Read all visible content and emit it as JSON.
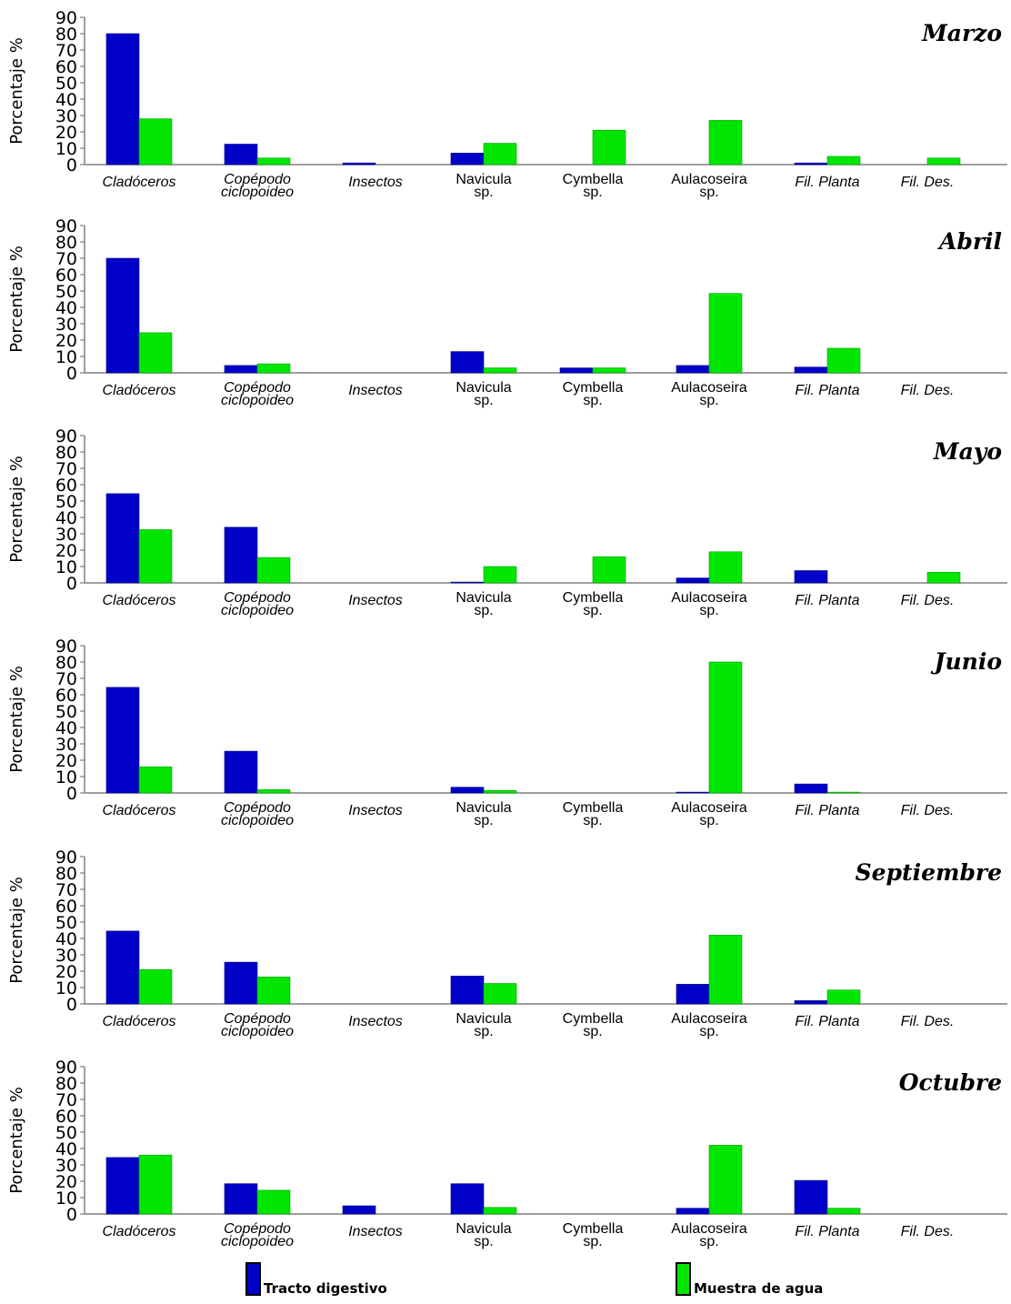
{
  "chart_data": [
    {
      "type": "bar",
      "title": "Marzo",
      "ylabel": "Porcentaje %",
      "ylim": [
        0,
        90
      ],
      "yticks": [
        "0",
        "10",
        "20",
        "30",
        "40",
        "50",
        "60",
        "70",
        "80",
        "90"
      ],
      "categories": [
        [
          "Cladóceros"
        ],
        [
          "Copépodo",
          "ciclopoideo"
        ],
        [
          "Insectos"
        ],
        [
          "Navicula",
          "sp."
        ],
        [
          "Cymbella",
          "sp."
        ],
        [
          "Aulacoseira",
          "sp."
        ],
        [
          "Fil. Planta"
        ],
        [
          "Fil. Des."
        ]
      ],
      "series": [
        {
          "name": "Tracto digestivo",
          "values": [
            80,
            12.5,
            1,
            7,
            0,
            0,
            1,
            0
          ]
        },
        {
          "name": "Muestra de agua",
          "values": [
            28,
            4,
            0,
            13,
            21,
            27,
            5,
            4
          ]
        }
      ]
    },
    {
      "type": "bar",
      "title": "Abril",
      "ylabel": "Porcentaje %",
      "ylim": [
        0,
        90
      ],
      "yticks": [
        "0",
        "10",
        "20",
        "30",
        "40",
        "50",
        "60",
        "70",
        "80",
        "90"
      ],
      "categories": [
        [
          "Cladóceros"
        ],
        [
          "Copépodo",
          "ciclopoideo"
        ],
        [
          "Insectos"
        ],
        [
          "Navicula",
          "sp."
        ],
        [
          "Cymbella",
          "sp."
        ],
        [
          "Aulacoseira",
          "sp."
        ],
        [
          "Fil. Planta"
        ],
        [
          "Fil. Des."
        ]
      ],
      "series": [
        {
          "name": "Tracto digestivo",
          "values": [
            70,
            4.5,
            0,
            13,
            3,
            4.5,
            3.5,
            0
          ]
        },
        {
          "name": "Muestra de agua",
          "values": [
            24.5,
            5.5,
            0,
            3,
            3,
            48.5,
            15,
            0
          ]
        }
      ]
    },
    {
      "type": "bar",
      "title": "Mayo",
      "ylabel": "Porcentaje %",
      "ylim": [
        0,
        90
      ],
      "yticks": [
        "0",
        "10",
        "20",
        "30",
        "40",
        "50",
        "60",
        "70",
        "80",
        "90"
      ],
      "categories": [
        [
          "Cladóceros"
        ],
        [
          "Copépodo",
          "ciclopoideo"
        ],
        [
          "Insectos"
        ],
        [
          "Navicula",
          "sp."
        ],
        [
          "Cymbella",
          "sp."
        ],
        [
          "Aulacoseira",
          "sp."
        ],
        [
          "Fil. Planta"
        ],
        [
          "Fil. Des."
        ]
      ],
      "series": [
        {
          "name": "Tracto digestivo",
          "values": [
            54.5,
            34,
            0,
            0.5,
            0,
            3,
            7.5,
            0
          ]
        },
        {
          "name": "Muestra de agua",
          "values": [
            32.5,
            15.5,
            0,
            10,
            16,
            19,
            0,
            6.5
          ]
        }
      ]
    },
    {
      "type": "bar",
      "title": "Junio",
      "ylabel": "Porcentaje %",
      "ylim": [
        0,
        90
      ],
      "yticks": [
        "0",
        "10",
        "20",
        "30",
        "40",
        "50",
        "60",
        "70",
        "80",
        "90"
      ],
      "categories": [
        [
          "Cladóceros"
        ],
        [
          "Copépodo",
          "ciclopoideo"
        ],
        [
          "Insectos"
        ],
        [
          "Navicula",
          "sp."
        ],
        [
          "Cymbella",
          "sp."
        ],
        [
          "Aulacoseira",
          "sp."
        ],
        [
          "Fil. Planta"
        ],
        [
          "Fil. Des."
        ]
      ],
      "series": [
        {
          "name": "Tracto digestivo",
          "values": [
            64.5,
            25.5,
            0,
            3.5,
            0,
            0.5,
            5.5,
            0
          ]
        },
        {
          "name": "Muestra de agua",
          "values": [
            16,
            2,
            0,
            1.5,
            0,
            80,
            0.5,
            0
          ]
        }
      ]
    },
    {
      "type": "bar",
      "title": "Septiembre",
      "ylabel": "Porcentaje %",
      "ylim": [
        0,
        90
      ],
      "yticks": [
        "0",
        "10",
        "20",
        "30",
        "40",
        "50",
        "60",
        "70",
        "80",
        "90"
      ],
      "categories": [
        [
          "Cladóceros"
        ],
        [
          "Copépodo",
          "ciclopoideo"
        ],
        [
          "Insectos"
        ],
        [
          "Navicula",
          "sp."
        ],
        [
          "Cymbella",
          "sp."
        ],
        [
          "Aulacoseira",
          "sp."
        ],
        [
          "Fil. Planta"
        ],
        [
          "Fil. Des."
        ]
      ],
      "series": [
        {
          "name": "Tracto digestivo",
          "values": [
            44.5,
            25.5,
            0,
            17,
            0,
            12,
            2,
            0
          ]
        },
        {
          "name": "Muestra de agua",
          "values": [
            21,
            16.5,
            0,
            12.5,
            0,
            42,
            8.5,
            0
          ]
        }
      ]
    },
    {
      "type": "bar",
      "title": "Octubre",
      "ylabel": "Porcentaje %",
      "ylim": [
        0,
        90
      ],
      "yticks": [
        "0",
        "10",
        "20",
        "30",
        "40",
        "50",
        "60",
        "70",
        "80",
        "90"
      ],
      "categories": [
        [
          "Cladóceros"
        ],
        [
          "Copépodo",
          "ciclopoideo"
        ],
        [
          "Insectos"
        ],
        [
          "Navicula",
          "sp."
        ],
        [
          "Cymbella",
          "sp."
        ],
        [
          "Aulacoseira",
          "sp."
        ],
        [
          "Fil. Planta"
        ],
        [
          "Fil. Des."
        ]
      ],
      "series": [
        {
          "name": "Tracto digestivo",
          "values": [
            34.5,
            18.5,
            5,
            18.5,
            0,
            3.5,
            20.5,
            0
          ]
        },
        {
          "name": "Muestra de agua",
          "values": [
            36,
            14.5,
            0,
            4,
            0,
            42,
            3.5,
            0
          ]
        }
      ]
    }
  ],
  "legend": {
    "items": [
      {
        "label": "Tracto digestivo",
        "color": "#0000c8"
      },
      {
        "label": "Muestra de agua",
        "color": "#00e600"
      }
    ]
  },
  "colors": {
    "tracto_digestivo": "#0000c8",
    "muestra_de_agua": "#00e600",
    "axis": "#7f7f7f"
  }
}
